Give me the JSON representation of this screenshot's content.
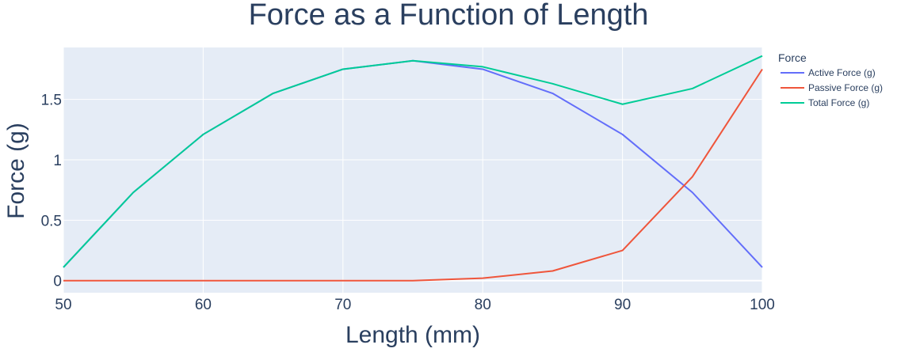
{
  "chart_data": {
    "type": "line",
    "title": "Force as a Function of Length",
    "xlabel": "Length (mm)",
    "ylabel": "Force (g)",
    "xlim": [
      50,
      100
    ],
    "ylim": [
      -0.1,
      1.93
    ],
    "x_ticks": [
      50,
      60,
      70,
      80,
      90,
      100
    ],
    "x_tick_labels": [
      "50",
      "60",
      "70",
      "80",
      "90",
      "100"
    ],
    "y_ticks": [
      0,
      0.5,
      1,
      1.5
    ],
    "y_tick_labels": [
      "0",
      "0.5",
      "1",
      "1.5"
    ],
    "grid": true,
    "legend_title": "Force",
    "legend_position": "right",
    "x": [
      50,
      55,
      60,
      65,
      70,
      75,
      80,
      85,
      90,
      95,
      100
    ],
    "series": [
      {
        "name": "Active Force (g)",
        "color": "#636efa",
        "values": [
          0.11,
          0.73,
          1.21,
          1.55,
          1.75,
          1.82,
          1.75,
          1.55,
          1.21,
          0.73,
          0.11
        ]
      },
      {
        "name": "Passive Force (g)",
        "color": "#ef553b",
        "values": [
          0,
          0,
          0,
          0,
          0,
          0,
          0.02,
          0.08,
          0.25,
          0.86,
          1.75
        ]
      },
      {
        "name": "Total Force (g)",
        "color": "#00cc96",
        "values": [
          0.11,
          0.73,
          1.21,
          1.55,
          1.75,
          1.82,
          1.77,
          1.63,
          1.46,
          1.59,
          1.86
        ]
      }
    ],
    "colors": {
      "plot_background": "#e5ecf6",
      "grid": "#ffffff",
      "text": "#2a3f5f"
    }
  }
}
